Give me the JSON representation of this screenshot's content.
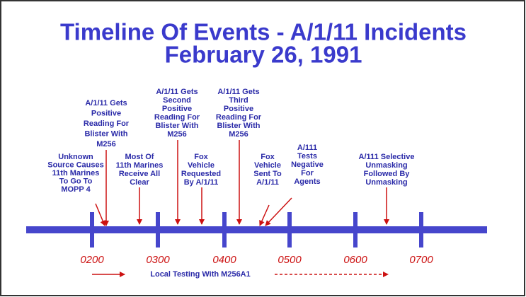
{
  "title": {
    "line1": "Timeline Of Events - A/1/11 Incidents",
    "line2": "February 26, 1991"
  },
  "timeline": {
    "ticks": [
      "0200",
      "0300",
      "0400",
      "0500",
      "0600",
      "0700"
    ]
  },
  "events": [
    {
      "lines": [
        "Unknown",
        "Source Causes",
        "11th Marines",
        "To Go To",
        "MOPP 4"
      ]
    },
    {
      "lines": [
        "A/1/11 Gets",
        "Positive",
        "Reading For",
        "Blister With",
        "M256"
      ]
    },
    {
      "lines": [
        "Most Of",
        "11th Marines",
        "Receive All",
        "Clear"
      ]
    },
    {
      "lines": [
        "A/1/11 Gets",
        "Second",
        "Positive",
        "Reading For",
        "Blister With",
        "M256"
      ]
    },
    {
      "lines": [
        "Fox",
        "Vehicle",
        "Requested",
        "By A/1/11"
      ]
    },
    {
      "lines": [
        "A/1/11 Gets",
        "Third",
        "Positive",
        "Reading For",
        "Blister With",
        "M256"
      ]
    },
    {
      "lines": [
        "Fox",
        "Vehicle",
        "Sent To",
        "A/1/11"
      ]
    },
    {
      "lines": [
        "A/111",
        "Tests",
        "Negative",
        "For",
        "Agents"
      ]
    },
    {
      "lines": [
        "A/111 Selective",
        "Unmasking",
        "Followed By",
        "Unmasking"
      ]
    }
  ],
  "footer": {
    "note": "Local Testing With M256A1"
  }
}
